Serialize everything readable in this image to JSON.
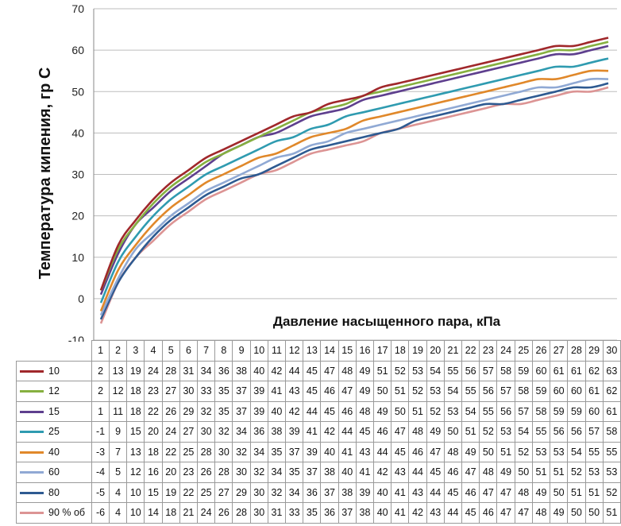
{
  "chart_data": {
    "type": "line",
    "title": "",
    "xlabel": "Давление насыщенного пара, кПа",
    "ylabel": "Температура кипения, гр С",
    "ylim": [
      -10,
      70
    ],
    "yticks": [
      -10,
      0,
      10,
      20,
      30,
      40,
      50,
      60,
      70
    ],
    "grid": true,
    "legend": "data-table",
    "categories": [
      1,
      2,
      3,
      4,
      5,
      6,
      7,
      8,
      9,
      10,
      11,
      12,
      13,
      14,
      15,
      16,
      17,
      18,
      19,
      20,
      21,
      22,
      23,
      24,
      25,
      26,
      27,
      28,
      29,
      30
    ],
    "series": [
      {
        "name": "10",
        "color": "#a0282b",
        "values": [
          2,
          13,
          19,
          24,
          28,
          31,
          34,
          36,
          38,
          40,
          42,
          44,
          45,
          47,
          48,
          49,
          51,
          52,
          53,
          54,
          55,
          56,
          57,
          58,
          59,
          60,
          61,
          61,
          62,
          63
        ]
      },
      {
        "name": "12",
        "color": "#86b040",
        "values": [
          2,
          12,
          18,
          23,
          27,
          30,
          33,
          35,
          37,
          39,
          41,
          43,
          45,
          46,
          47,
          49,
          50,
          51,
          52,
          53,
          54,
          55,
          56,
          57,
          58,
          59,
          60,
          60,
          61,
          62
        ]
      },
      {
        "name": "15",
        "color": "#5e3f8e",
        "values": [
          1,
          11,
          18,
          22,
          26,
          29,
          32,
          35,
          37,
          39,
          40,
          42,
          44,
          45,
          46,
          48,
          49,
          50,
          51,
          52,
          53,
          54,
          55,
          56,
          57,
          58,
          59,
          59,
          60,
          61
        ]
      },
      {
        "name": "25",
        "color": "#2f9bb0",
        "values": [
          -1,
          9,
          15,
          20,
          24,
          27,
          30,
          32,
          34,
          36,
          38,
          39,
          41,
          42,
          44,
          45,
          46,
          47,
          48,
          49,
          50,
          51,
          52,
          53,
          54,
          55,
          56,
          56,
          57,
          58
        ]
      },
      {
        "name": "40",
        "color": "#e0882a",
        "values": [
          -3,
          7,
          13,
          18,
          22,
          25,
          28,
          30,
          32,
          34,
          35,
          37,
          39,
          40,
          41,
          43,
          44,
          45,
          46,
          47,
          48,
          49,
          50,
          51,
          52,
          53,
          53,
          54,
          55,
          55
        ]
      },
      {
        "name": "60",
        "color": "#90a9d4",
        "values": [
          -4,
          5,
          12,
          16,
          20,
          23,
          26,
          28,
          30,
          32,
          34,
          35,
          37,
          38,
          40,
          41,
          42,
          43,
          44,
          45,
          46,
          47,
          48,
          49,
          50,
          51,
          51,
          52,
          53,
          53
        ]
      },
      {
        "name": "80",
        "color": "#2e5a91",
        "values": [
          -5,
          4,
          10,
          15,
          19,
          22,
          25,
          27,
          29,
          30,
          32,
          34,
          36,
          37,
          38,
          39,
          40,
          41,
          43,
          44,
          45,
          46,
          47,
          47,
          48,
          49,
          50,
          51,
          51,
          52
        ]
      },
      {
        "name": "90 % об",
        "color": "#dc9494",
        "values": [
          -6,
          4,
          10,
          14,
          18,
          21,
          24,
          26,
          28,
          30,
          31,
          33,
          35,
          36,
          37,
          38,
          40,
          41,
          42,
          43,
          44,
          45,
          46,
          47,
          47,
          48,
          49,
          50,
          50,
          51
        ]
      }
    ]
  }
}
